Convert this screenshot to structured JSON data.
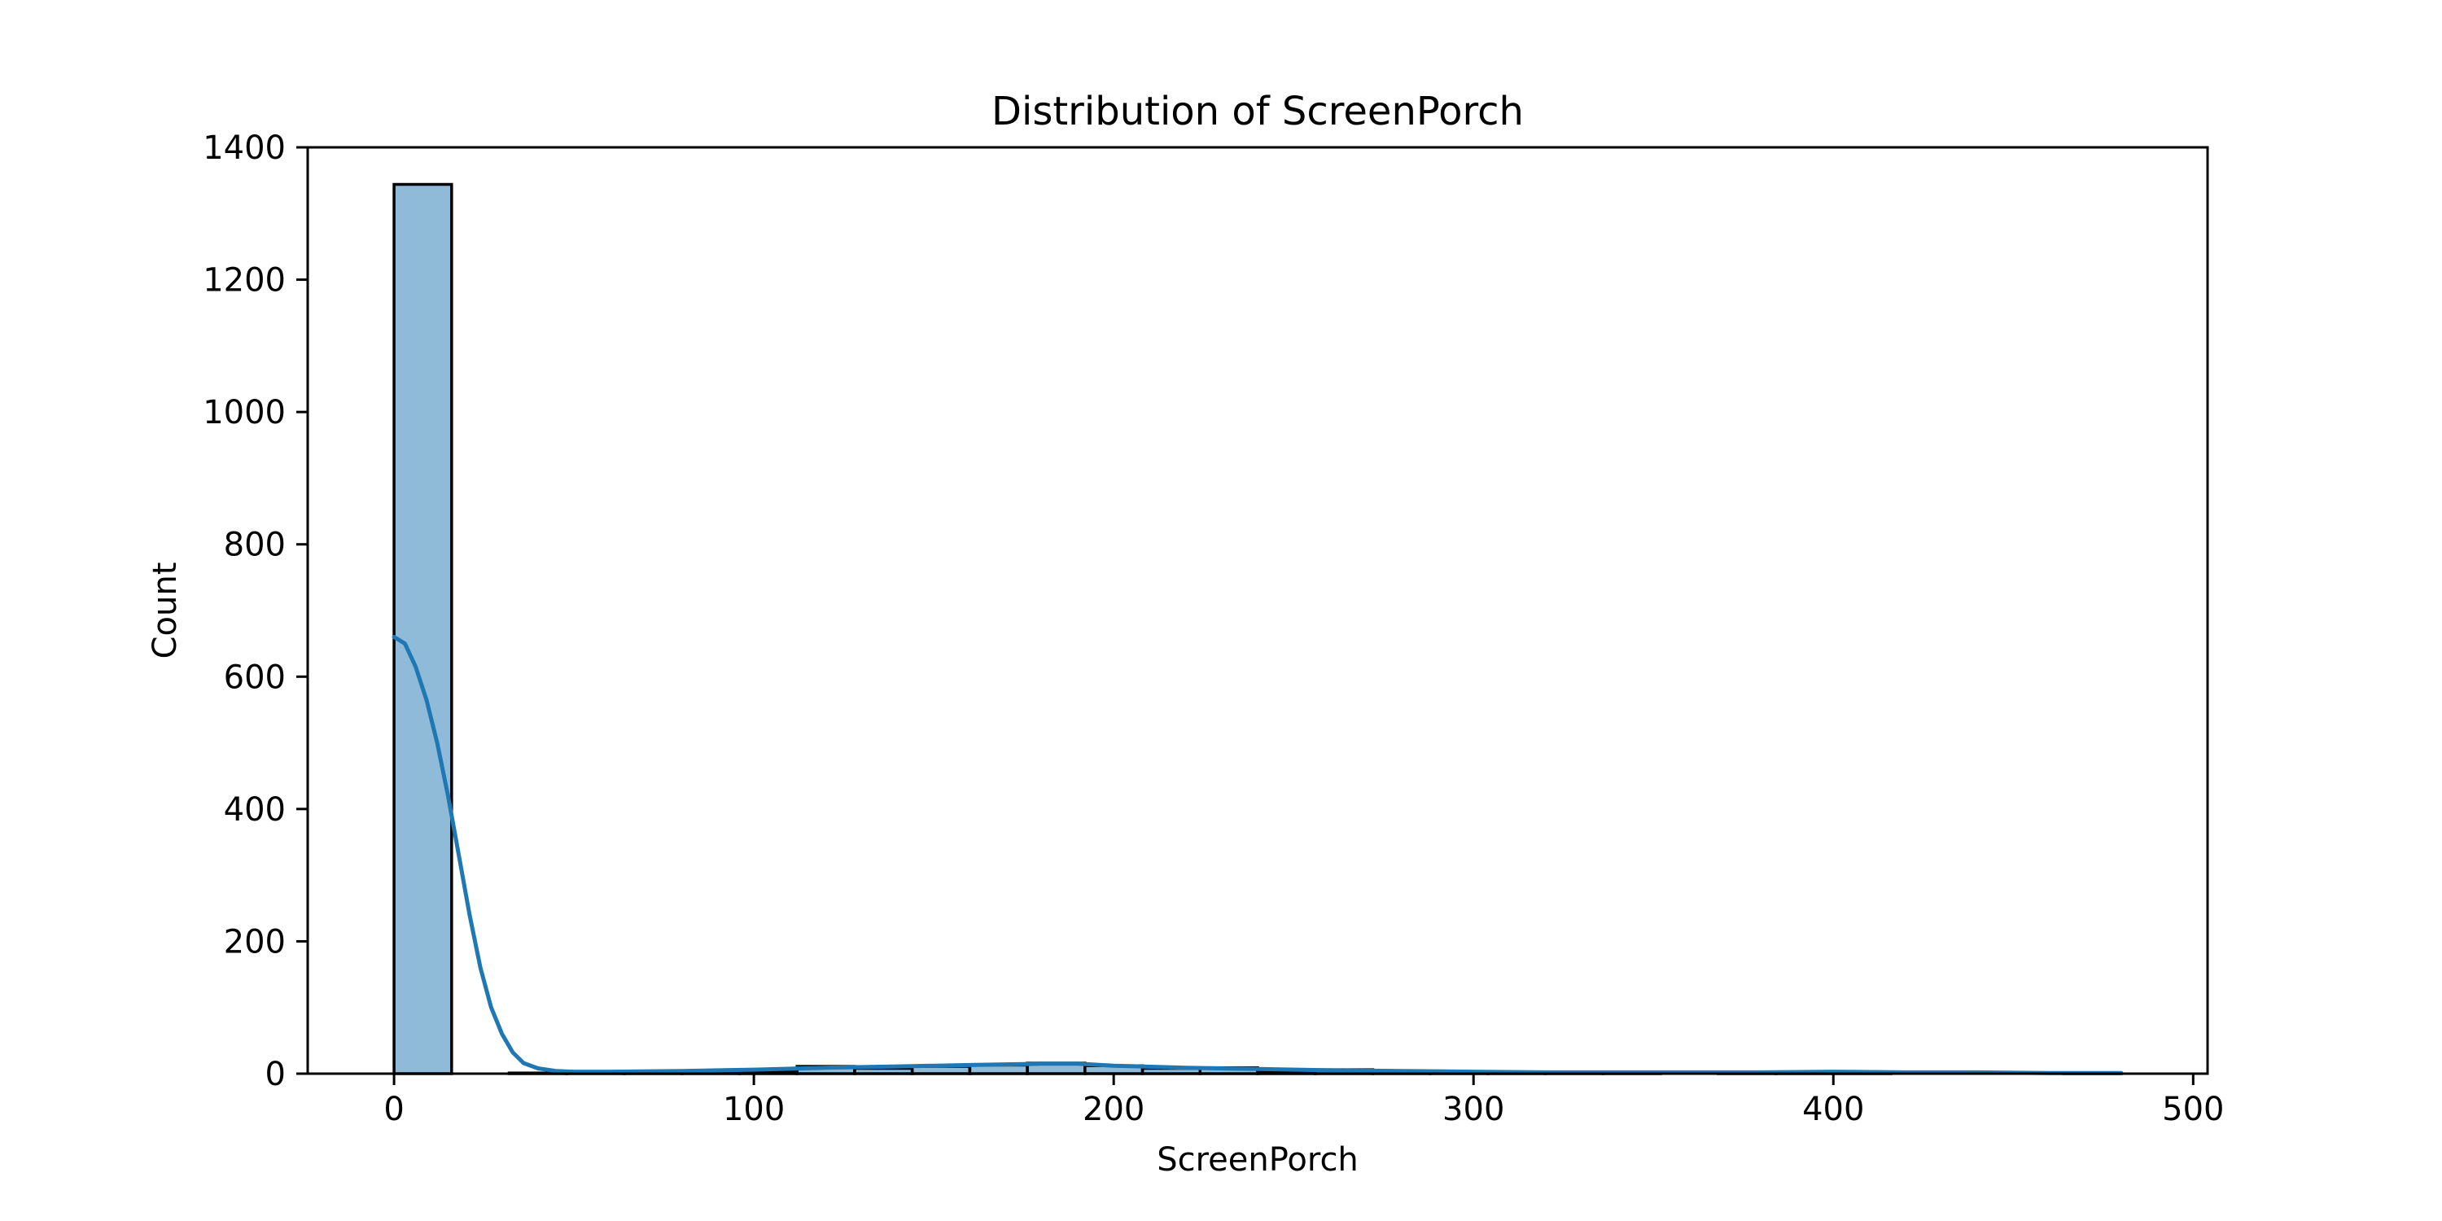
{
  "chart_data": {
    "type": "bar",
    "title": "Distribution of ScreenPorch",
    "xlabel": "ScreenPorch",
    "ylabel": "Count",
    "xlim": [
      -24,
      504
    ],
    "ylim": [
      0,
      1400
    ],
    "xticks": [
      0,
      100,
      200,
      300,
      400,
      500
    ],
    "yticks": [
      0,
      200,
      400,
      600,
      800,
      1000,
      1200,
      1400
    ],
    "grid": false,
    "legend": "none",
    "bar_color": "#1f77b4",
    "bar_opacity": 0.5,
    "edge_color": "#000000",
    "bins": [
      {
        "x0": 0,
        "x1": 16,
        "count": 1344
      },
      {
        "x0": 16,
        "x1": 32,
        "count": 0
      },
      {
        "x0": 32,
        "x1": 48,
        "count": 1
      },
      {
        "x0": 48,
        "x1": 64,
        "count": 1
      },
      {
        "x0": 64,
        "x1": 80,
        "count": 2
      },
      {
        "x0": 80,
        "x1": 96,
        "count": 4
      },
      {
        "x0": 96,
        "x1": 112,
        "count": 4
      },
      {
        "x0": 112,
        "x1": 128,
        "count": 11
      },
      {
        "x0": 128,
        "x1": 144,
        "count": 8
      },
      {
        "x0": 144,
        "x1": 160,
        "count": 11
      },
      {
        "x0": 160,
        "x1": 176,
        "count": 13
      },
      {
        "x0": 176,
        "x1": 192,
        "count": 16
      },
      {
        "x0": 192,
        "x1": 208,
        "count": 12
      },
      {
        "x0": 208,
        "x1": 224,
        "count": 8
      },
      {
        "x0": 224,
        "x1": 240,
        "count": 9
      },
      {
        "x0": 240,
        "x1": 256,
        "count": 4
      },
      {
        "x0": 256,
        "x1": 272,
        "count": 6
      },
      {
        "x0": 272,
        "x1": 288,
        "count": 2
      },
      {
        "x0": 288,
        "x1": 304,
        "count": 2
      },
      {
        "x0": 304,
        "x1": 320,
        "count": 1
      },
      {
        "x0": 320,
        "x1": 336,
        "count": 1
      },
      {
        "x0": 336,
        "x1": 352,
        "count": 1
      },
      {
        "x0": 352,
        "x1": 368,
        "count": 0
      },
      {
        "x0": 368,
        "x1": 384,
        "count": 1
      },
      {
        "x0": 384,
        "x1": 400,
        "count": 1
      },
      {
        "x0": 400,
        "x1": 416,
        "count": 1
      },
      {
        "x0": 416,
        "x1": 432,
        "count": 0
      },
      {
        "x0": 432,
        "x1": 448,
        "count": 0
      },
      {
        "x0": 448,
        "x1": 464,
        "count": 0
      },
      {
        "x0": 464,
        "x1": 480,
        "count": 1
      }
    ],
    "kde": {
      "color": "#1f77b4",
      "x": [
        0,
        3,
        6,
        9,
        12,
        15,
        18,
        21,
        24,
        27,
        30,
        33,
        36,
        40,
        45,
        50,
        60,
        80,
        100,
        120,
        140,
        160,
        180,
        190,
        200,
        220,
        240,
        260,
        280,
        300,
        320,
        340,
        360,
        380,
        400,
        420,
        440,
        460,
        480
      ],
      "y": [
        660,
        650,
        615,
        565,
        500,
        420,
        330,
        240,
        160,
        100,
        60,
        32,
        16,
        8,
        4,
        3,
        3,
        4,
        6,
        9,
        11,
        13,
        15,
        15,
        12,
        9,
        7,
        5,
        4,
        3,
        2,
        2,
        2,
        2,
        3,
        2,
        2,
        1,
        1
      ]
    }
  }
}
